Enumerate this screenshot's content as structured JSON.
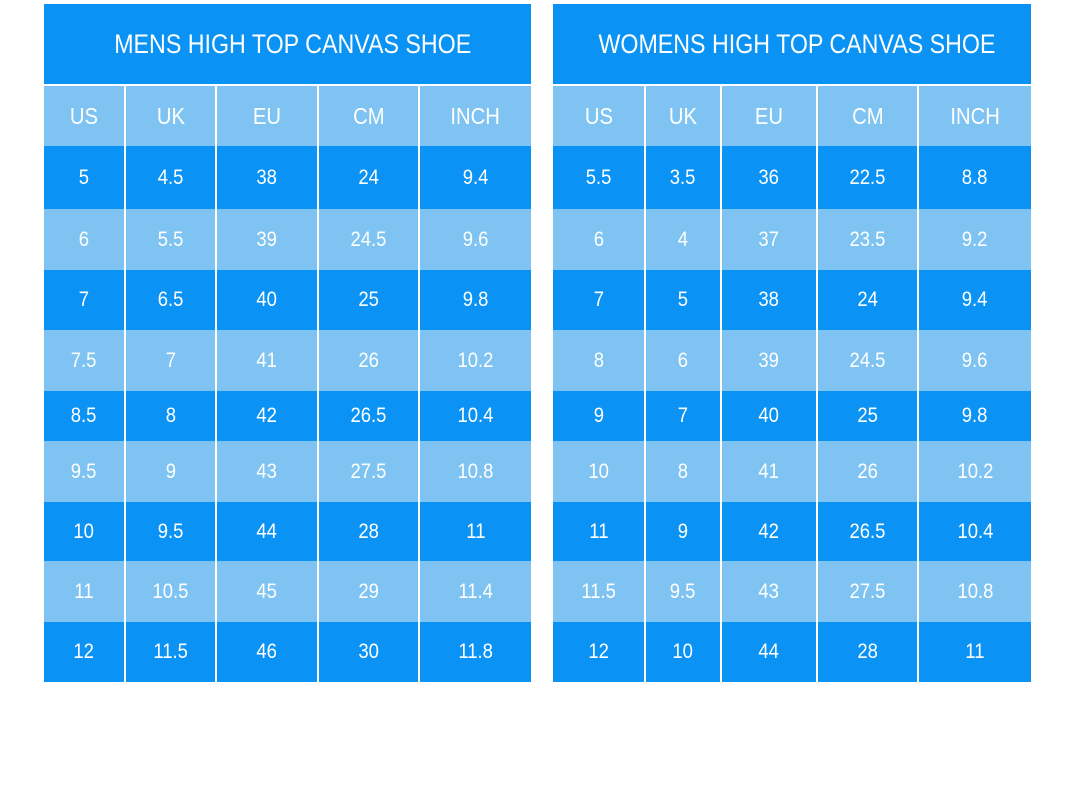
{
  "colors": {
    "dark": "#0a93f5",
    "light": "#7ec3f2"
  },
  "charts": [
    {
      "title": "MENS HIGH TOP CANVAS SHOE",
      "headers": [
        "US",
        "UK",
        "EU",
        "CM",
        "INCH"
      ],
      "rows": [
        [
          "5",
          "4.5",
          "38",
          "24",
          "9.4"
        ],
        [
          "6",
          "5.5",
          "39",
          "24.5",
          "9.6"
        ],
        [
          "7",
          "6.5",
          "40",
          "25",
          "9.8"
        ],
        [
          "7.5",
          "7",
          "41",
          "26",
          "10.2"
        ],
        [
          "8.5",
          "8",
          "42",
          "26.5",
          "10.4"
        ],
        [
          "9.5",
          "9",
          "43",
          "27.5",
          "10.8"
        ],
        [
          "10",
          "9.5",
          "44",
          "28",
          "11"
        ],
        [
          "11",
          "10.5",
          "45",
          "29",
          "11.4"
        ],
        [
          "12",
          "11.5",
          "46",
          "30",
          "11.8"
        ]
      ]
    },
    {
      "title": "WOMENS HIGH TOP CANVAS SHOE",
      "headers": [
        "US",
        "UK",
        "EU",
        "CM",
        "INCH"
      ],
      "rows": [
        [
          "5.5",
          "3.5",
          "36",
          "22.5",
          "8.8"
        ],
        [
          "6",
          "4",
          "37",
          "23.5",
          "9.2"
        ],
        [
          "7",
          "5",
          "38",
          "24",
          "9.4"
        ],
        [
          "8",
          "6",
          "39",
          "24.5",
          "9.6"
        ],
        [
          "9",
          "7",
          "40",
          "25",
          "9.8"
        ],
        [
          "10",
          "8",
          "41",
          "26",
          "10.2"
        ],
        [
          "11",
          "9",
          "42",
          "26.5",
          "10.4"
        ],
        [
          "11.5",
          "9.5",
          "43",
          "27.5",
          "10.8"
        ],
        [
          "12",
          "10",
          "44",
          "28",
          "11"
        ]
      ]
    }
  ]
}
